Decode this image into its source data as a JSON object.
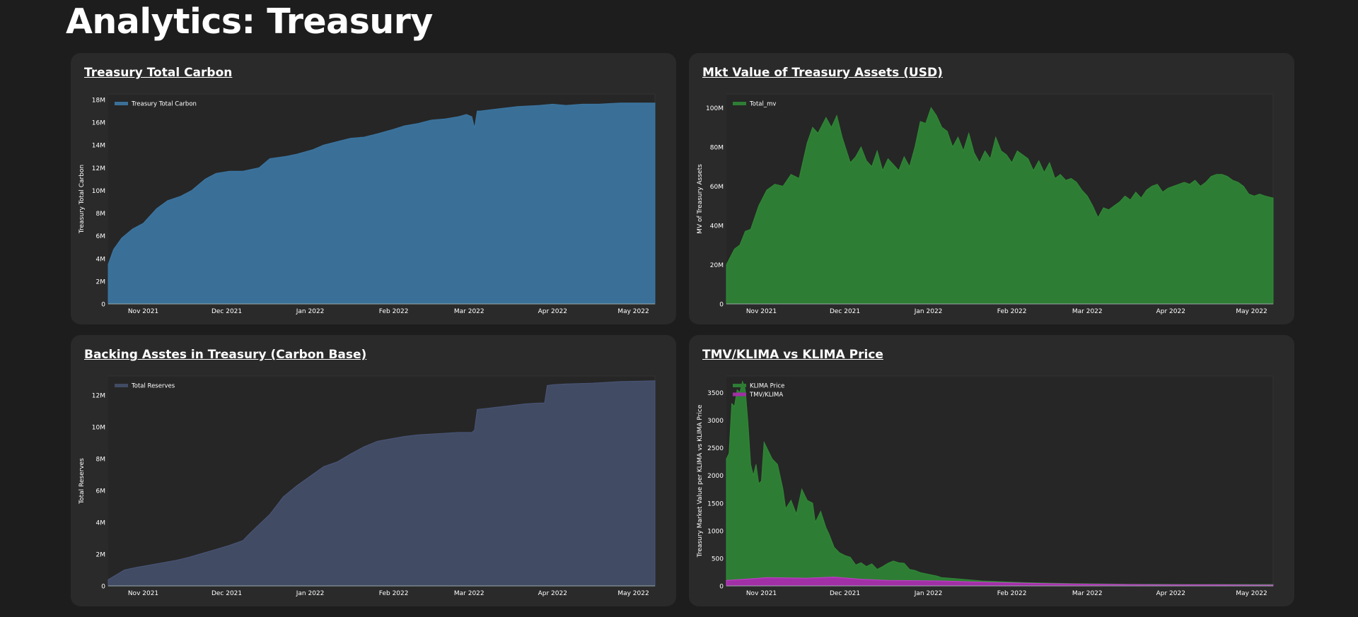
{
  "page": {
    "title": "Analytics: Treasury"
  },
  "charts": [
    {
      "id": "carbon",
      "heading": "Treasury Total Carbon",
      "colors": {
        "fill": "#3a7098",
        "stroke": "#3b76a3"
      }
    },
    {
      "id": "mv",
      "heading": "Mkt Value of Treasury Assets (USD)",
      "colors": {
        "fill": "#2e7d34",
        "stroke": "#2f8a35"
      }
    },
    {
      "id": "reserves",
      "heading": "Backing Asstes in Treasury (Carbon Base)",
      "colors": {
        "fill": "#414b63",
        "stroke": "#4a567a"
      }
    },
    {
      "id": "price",
      "heading": "TMV/KLIMA vs KLIMA Price",
      "colors": {
        "fill": "#2e7d34",
        "stroke": "#2f8a35",
        "fill2": "#a12fa6",
        "stroke2": "#c83fcf"
      }
    }
  ],
  "chart_data": [
    {
      "type": "area",
      "title": "Treasury Total Carbon",
      "xlabel": "",
      "ylabel": "Treasury Total Carbon",
      "legend": "top-left",
      "x_ticks": [
        "Nov 2021",
        "Dec 2021",
        "Jan 2022",
        "Feb 2022",
        "Mar 2022",
        "Apr 2022",
        "May 2022"
      ],
      "x_tick_days": [
        13,
        44,
        75,
        106,
        134,
        165,
        195
      ],
      "xlim": [
        0,
        203
      ],
      "y_ticks": [
        "0",
        "2M",
        "4M",
        "6M",
        "8M",
        "10M",
        "12M",
        "14M",
        "16M",
        "18M"
      ],
      "ylim": [
        0,
        18500000
      ],
      "series": [
        {
          "name": "Treasury Total Carbon",
          "x": [
            0,
            2,
            5,
            9,
            13,
            18,
            22,
            27,
            31,
            36,
            40,
            45,
            50,
            56,
            60,
            66,
            70,
            76,
            80,
            85,
            90,
            95,
            100,
            106,
            110,
            115,
            120,
            125,
            130,
            133,
            135,
            136,
            137,
            138,
            145,
            152,
            160,
            165,
            170,
            176,
            182,
            190,
            198,
            203
          ],
          "y": [
            3500000,
            4800000,
            5800000,
            6600000,
            7100000,
            8400000,
            9100000,
            9500000,
            10000000,
            11000000,
            11500000,
            11700000,
            11700000,
            12000000,
            12800000,
            13000000,
            13200000,
            13600000,
            14000000,
            14300000,
            14600000,
            14700000,
            15000000,
            15400000,
            15700000,
            15900000,
            16200000,
            16300000,
            16500000,
            16700000,
            16500000,
            15500000,
            17000000,
            17000000,
            17200000,
            17400000,
            17500000,
            17600000,
            17500000,
            17600000,
            17600000,
            17700000,
            17700000,
            17700000
          ]
        }
      ]
    },
    {
      "type": "area",
      "title": "Mkt Value of Treasury Assets (USD)",
      "xlabel": "",
      "ylabel": "MV of Treasury Assets",
      "legend": "top-left",
      "x_ticks": [
        "Nov 2021",
        "Dec 2021",
        "Jan 2022",
        "Feb 2022",
        "Mar 2022",
        "Apr 2022",
        "May 2022"
      ],
      "x_tick_days": [
        13,
        44,
        75,
        106,
        134,
        165,
        195
      ],
      "xlim": [
        0,
        203
      ],
      "y_ticks": [
        "0",
        "20M",
        "40M",
        "60M",
        "80M",
        "100M"
      ],
      "ylim": [
        0,
        107000000
      ],
      "series": [
        {
          "name": "Total_mv",
          "x": [
            0,
            3,
            5,
            7,
            9,
            12,
            15,
            18,
            21,
            24,
            27,
            30,
            32,
            34,
            37,
            39,
            41,
            43,
            46,
            48,
            50,
            52,
            54,
            56,
            58,
            60,
            62,
            64,
            66,
            68,
            70,
            72,
            74,
            76,
            78,
            80,
            82,
            84,
            86,
            88,
            90,
            92,
            94,
            96,
            98,
            100,
            102,
            104,
            106,
            108,
            110,
            112,
            114,
            116,
            118,
            120,
            122,
            124,
            126,
            128,
            130,
            132,
            134,
            136,
            138,
            140,
            142,
            144,
            146,
            148,
            150,
            152,
            154,
            156,
            158,
            160,
            162,
            164,
            166,
            168,
            170,
            172,
            174,
            176,
            178,
            180,
            182,
            184,
            186,
            188,
            190,
            192,
            194,
            196,
            198,
            200,
            203
          ],
          "y": [
            20000000,
            28000000,
            30000000,
            37000000,
            38000000,
            50000000,
            58000000,
            61000000,
            60000000,
            66000000,
            64000000,
            82000000,
            90000000,
            87000000,
            95000000,
            90000000,
            96000000,
            85000000,
            72000000,
            75000000,
            80000000,
            73000000,
            70000000,
            78000000,
            68000000,
            74000000,
            71000000,
            68000000,
            75000000,
            70000000,
            80000000,
            93000000,
            92000000,
            100000000,
            96000000,
            90000000,
            88000000,
            80000000,
            85000000,
            78000000,
            87000000,
            77000000,
            72000000,
            78000000,
            74000000,
            85000000,
            78000000,
            76000000,
            72000000,
            78000000,
            76000000,
            74000000,
            68000000,
            73000000,
            67000000,
            72000000,
            64000000,
            66000000,
            63000000,
            64000000,
            62000000,
            58000000,
            55000000,
            50000000,
            44000000,
            49000000,
            48000000,
            50000000,
            52000000,
            55000000,
            53000000,
            57000000,
            54000000,
            58000000,
            60000000,
            61000000,
            57000000,
            59000000,
            60000000,
            61000000,
            62000000,
            61000000,
            63000000,
            60000000,
            62000000,
            65000000,
            66000000,
            66000000,
            65000000,
            63000000,
            62000000,
            60000000,
            56000000,
            55000000,
            56000000,
            55000000,
            54000000
          ]
        }
      ]
    },
    {
      "type": "area",
      "title": "Backing Asstes in Treasury (Carbon Base)",
      "xlabel": "",
      "ylabel": "Total Reserves",
      "legend": "top-left",
      "x_ticks": [
        "Nov 2021",
        "Dec 2021",
        "Jan 2022",
        "Feb 2022",
        "Mar 2022",
        "Apr 2022",
        "May 2022"
      ],
      "x_tick_days": [
        13,
        44,
        75,
        106,
        134,
        165,
        195
      ],
      "xlim": [
        0,
        203
      ],
      "y_ticks": [
        "0",
        "2M",
        "4M",
        "6M",
        "8M",
        "10M",
        "12M"
      ],
      "ylim": [
        0,
        13200000
      ],
      "series": [
        {
          "name": "Total Reserves",
          "x": [
            0,
            3,
            6,
            10,
            15,
            20,
            25,
            30,
            35,
            40,
            45,
            50,
            52,
            55,
            60,
            65,
            70,
            75,
            80,
            85,
            90,
            95,
            100,
            105,
            110,
            115,
            120,
            125,
            130,
            135,
            136,
            137,
            140,
            145,
            150,
            155,
            160,
            162,
            163,
            165,
            170,
            180,
            190,
            203
          ],
          "y": [
            400000,
            700000,
            1000000,
            1150000,
            1300000,
            1450000,
            1600000,
            1800000,
            2050000,
            2300000,
            2550000,
            2850000,
            3200000,
            3700000,
            4500000,
            5600000,
            6300000,
            6900000,
            7500000,
            7800000,
            8300000,
            8750000,
            9100000,
            9250000,
            9400000,
            9500000,
            9550000,
            9600000,
            9650000,
            9650000,
            9800000,
            11100000,
            11150000,
            11250000,
            11350000,
            11450000,
            11500000,
            11500000,
            12600000,
            12650000,
            12700000,
            12750000,
            12850000,
            12900000
          ]
        }
      ]
    },
    {
      "type": "area",
      "title": "TMV/KLIMA vs KLIMA Price",
      "xlabel": "",
      "ylabel": "Treasury Market Value per KLIMA vs KLIMA Price",
      "legend": "top-left",
      "x_ticks": [
        "Nov 2021",
        "Dec 2021",
        "Jan 2022",
        "Feb 2022",
        "Mar 2022",
        "Apr 2022",
        "May 2022"
      ],
      "x_tick_days": [
        13,
        44,
        75,
        106,
        134,
        165,
        195
      ],
      "xlim": [
        0,
        203
      ],
      "y_ticks": [
        "0",
        "500",
        "1000",
        "1500",
        "2000",
        "2500",
        "3000",
        "3500"
      ],
      "ylim": [
        0,
        3800
      ],
      "series": [
        {
          "name": "KLIMA Price",
          "x": [
            0,
            1,
            2,
            3,
            4,
            5,
            6,
            7,
            8,
            9,
            10,
            11,
            12,
            13,
            14,
            15,
            17,
            19,
            21,
            22,
            24,
            26,
            28,
            30,
            32,
            33,
            35,
            37,
            38,
            40,
            42,
            44,
            46,
            48,
            50,
            52,
            54,
            56,
            58,
            60,
            62,
            64,
            66,
            68,
            70,
            72,
            74,
            76,
            78,
            80,
            85,
            90,
            95,
            100,
            105,
            110,
            115,
            120,
            125,
            130,
            140,
            150,
            160,
            170,
            180,
            190,
            203
          ],
          "y": [
            2300,
            2400,
            3300,
            3250,
            3550,
            3500,
            3700,
            3550,
            2950,
            2200,
            2000,
            2200,
            1850,
            1900,
            2600,
            2500,
            2300,
            2200,
            1750,
            1400,
            1550,
            1300,
            1750,
            1550,
            1500,
            1150,
            1350,
            1050,
            950,
            700,
            600,
            550,
            520,
            380,
            420,
            350,
            400,
            300,
            350,
            410,
            450,
            420,
            410,
            300,
            280,
            240,
            220,
            200,
            180,
            150,
            130,
            110,
            90,
            80,
            70,
            60,
            55,
            50,
            45,
            40,
            35,
            30,
            28,
            25,
            25,
            25,
            25
          ]
        },
        {
          "name": "TMV/KLIMA",
          "x": [
            0,
            10,
            15,
            30,
            40,
            50,
            60,
            80,
            100,
            120,
            140,
            160,
            180,
            203
          ],
          "y": [
            100,
            130,
            150,
            140,
            160,
            120,
            100,
            90,
            60,
            40,
            30,
            20,
            20,
            15
          ]
        }
      ]
    }
  ]
}
